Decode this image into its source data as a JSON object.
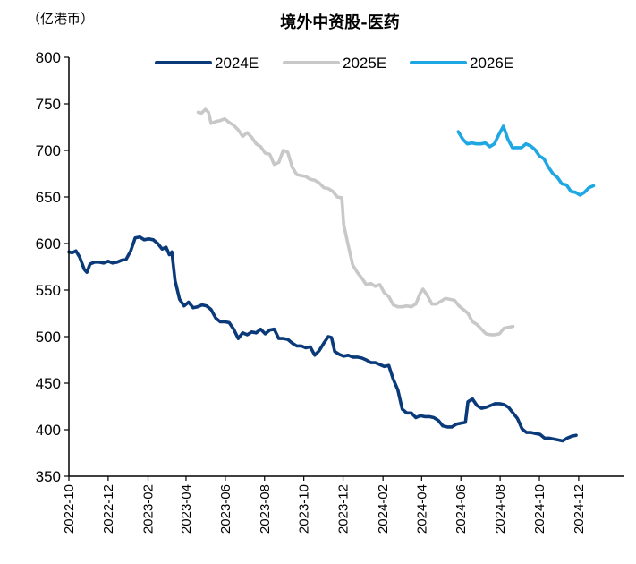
{
  "chart_data": {
    "type": "line",
    "title": "境外中资股-医药",
    "unit_label": "（亿港币）",
    "ylim": [
      350,
      800
    ],
    "yticks": [
      350,
      400,
      450,
      500,
      550,
      600,
      650,
      700,
      750,
      800
    ],
    "xlim": [
      "2022-10-01",
      "2025-02-10"
    ],
    "xticks": [
      "2022-10",
      "2022-12",
      "2023-02",
      "2023-04",
      "2023-06",
      "2023-08",
      "2023-10",
      "2023-12",
      "2024-02",
      "2024-04",
      "2024-06",
      "2024-08",
      "2024-10",
      "2024-12"
    ],
    "grid": false,
    "legend_position": "top",
    "series": [
      {
        "name": "2024E",
        "color": "#0a3a7a",
        "points": [
          [
            "2022-10-01",
            591
          ],
          [
            "2022-10-06",
            590
          ],
          [
            "2022-10-12",
            592
          ],
          [
            "2022-10-18",
            585
          ],
          [
            "2022-10-25",
            572
          ],
          [
            "2022-10-29",
            569
          ],
          [
            "2022-11-03",
            578
          ],
          [
            "2022-11-10",
            580
          ],
          [
            "2022-11-17",
            580
          ],
          [
            "2022-11-24",
            579
          ],
          [
            "2022-12-01",
            581
          ],
          [
            "2022-12-08",
            579
          ],
          [
            "2022-12-15",
            580
          ],
          [
            "2022-12-22",
            582
          ],
          [
            "2022-12-29",
            583
          ],
          [
            "2023-01-05",
            592
          ],
          [
            "2023-01-12",
            606
          ],
          [
            "2023-01-19",
            607
          ],
          [
            "2023-01-26",
            604
          ],
          [
            "2023-02-02",
            605
          ],
          [
            "2023-02-09",
            604
          ],
          [
            "2023-02-16",
            600
          ],
          [
            "2023-02-23",
            594
          ],
          [
            "2023-03-01",
            596
          ],
          [
            "2023-03-06",
            588
          ],
          [
            "2023-03-10",
            591
          ],
          [
            "2023-03-15",
            560
          ],
          [
            "2023-03-22",
            540
          ],
          [
            "2023-03-29",
            533
          ],
          [
            "2023-04-05",
            537
          ],
          [
            "2023-04-12",
            531
          ],
          [
            "2023-04-19",
            532
          ],
          [
            "2023-04-26",
            534
          ],
          [
            "2023-05-03",
            533
          ],
          [
            "2023-05-10",
            529
          ],
          [
            "2023-05-17",
            520
          ],
          [
            "2023-05-24",
            516
          ],
          [
            "2023-05-31",
            516
          ],
          [
            "2023-06-07",
            515
          ],
          [
            "2023-06-14",
            508
          ],
          [
            "2023-06-21",
            498
          ],
          [
            "2023-06-28",
            504
          ],
          [
            "2023-07-05",
            502
          ],
          [
            "2023-07-12",
            505
          ],
          [
            "2023-07-19",
            504
          ],
          [
            "2023-07-26",
            508
          ],
          [
            "2023-08-02",
            503
          ],
          [
            "2023-08-09",
            507
          ],
          [
            "2023-08-16",
            508
          ],
          [
            "2023-08-23",
            498
          ],
          [
            "2023-08-30",
            498
          ],
          [
            "2023-09-06",
            497
          ],
          [
            "2023-09-13",
            493
          ],
          [
            "2023-09-20",
            490
          ],
          [
            "2023-09-27",
            490
          ],
          [
            "2023-10-04",
            488
          ],
          [
            "2023-10-11",
            489
          ],
          [
            "2023-10-18",
            480
          ],
          [
            "2023-10-25",
            485
          ],
          [
            "2023-11-01",
            493
          ],
          [
            "2023-11-08",
            500
          ],
          [
            "2023-11-13",
            499
          ],
          [
            "2023-11-18",
            484
          ],
          [
            "2023-11-25",
            481
          ],
          [
            "2023-12-02",
            479
          ],
          [
            "2023-12-09",
            480
          ],
          [
            "2023-12-16",
            478
          ],
          [
            "2023-12-23",
            478
          ],
          [
            "2023-12-30",
            477
          ],
          [
            "2024-01-06",
            475
          ],
          [
            "2024-01-13",
            472
          ],
          [
            "2024-01-20",
            472
          ],
          [
            "2024-01-27",
            470
          ],
          [
            "2024-02-03",
            468
          ],
          [
            "2024-02-10",
            469
          ],
          [
            "2024-02-17",
            454
          ],
          [
            "2024-02-24",
            443
          ],
          [
            "2024-03-02",
            422
          ],
          [
            "2024-03-09",
            418
          ],
          [
            "2024-03-16",
            418
          ],
          [
            "2024-03-23",
            413
          ],
          [
            "2024-03-30",
            415
          ],
          [
            "2024-04-06",
            414
          ],
          [
            "2024-04-13",
            414
          ],
          [
            "2024-04-20",
            413
          ],
          [
            "2024-04-27",
            410
          ],
          [
            "2024-05-04",
            404
          ],
          [
            "2024-05-11",
            403
          ],
          [
            "2024-05-18",
            403
          ],
          [
            "2024-05-25",
            406
          ],
          [
            "2024-06-01",
            407
          ],
          [
            "2024-06-08",
            408
          ],
          [
            "2024-06-12",
            430
          ],
          [
            "2024-06-19",
            433
          ],
          [
            "2024-06-26",
            426
          ],
          [
            "2024-07-03",
            423
          ],
          [
            "2024-07-10",
            424
          ],
          [
            "2024-07-17",
            426
          ],
          [
            "2024-07-24",
            428
          ],
          [
            "2024-07-31",
            428
          ],
          [
            "2024-08-07",
            427
          ],
          [
            "2024-08-14",
            424
          ],
          [
            "2024-08-21",
            418
          ],
          [
            "2024-08-28",
            412
          ],
          [
            "2024-09-04",
            401
          ],
          [
            "2024-09-11",
            397
          ],
          [
            "2024-09-18",
            397
          ],
          [
            "2024-09-25",
            396
          ],
          [
            "2024-10-02",
            395
          ],
          [
            "2024-10-09",
            391
          ],
          [
            "2024-10-16",
            391
          ],
          [
            "2024-10-23",
            390
          ],
          [
            "2024-10-30",
            389
          ],
          [
            "2024-11-06",
            388
          ],
          [
            "2024-11-13",
            391
          ],
          [
            "2024-11-20",
            393
          ],
          [
            "2024-11-27",
            394
          ]
        ]
      },
      {
        "name": "2025E",
        "color": "#c8c8c8",
        "points": [
          [
            "2023-04-20",
            741
          ],
          [
            "2023-04-25",
            740
          ],
          [
            "2023-05-01",
            744
          ],
          [
            "2023-05-06",
            741
          ],
          [
            "2023-05-10",
            729
          ],
          [
            "2023-05-17",
            731
          ],
          [
            "2023-05-24",
            732
          ],
          [
            "2023-05-31",
            734
          ],
          [
            "2023-06-07",
            730
          ],
          [
            "2023-06-14",
            727
          ],
          [
            "2023-06-21",
            722
          ],
          [
            "2023-06-28",
            715
          ],
          [
            "2023-07-05",
            719
          ],
          [
            "2023-07-12",
            714
          ],
          [
            "2023-07-19",
            707
          ],
          [
            "2023-07-26",
            704
          ],
          [
            "2023-08-02",
            697
          ],
          [
            "2023-08-09",
            696
          ],
          [
            "2023-08-16",
            685
          ],
          [
            "2023-08-23",
            687
          ],
          [
            "2023-08-30",
            700
          ],
          [
            "2023-09-06",
            698
          ],
          [
            "2023-09-13",
            682
          ],
          [
            "2023-09-20",
            674
          ],
          [
            "2023-09-27",
            673
          ],
          [
            "2023-10-04",
            672
          ],
          [
            "2023-10-11",
            669
          ],
          [
            "2023-10-18",
            668
          ],
          [
            "2023-10-25",
            665
          ],
          [
            "2023-11-01",
            660
          ],
          [
            "2023-11-08",
            659
          ],
          [
            "2023-11-15",
            656
          ],
          [
            "2023-11-22",
            650
          ],
          [
            "2023-11-29",
            649
          ],
          [
            "2023-12-02",
            620
          ],
          [
            "2023-12-09",
            598
          ],
          [
            "2023-12-16",
            577
          ],
          [
            "2023-12-23",
            569
          ],
          [
            "2023-12-30",
            563
          ],
          [
            "2024-01-06",
            556
          ],
          [
            "2024-01-13",
            557
          ],
          [
            "2024-01-20",
            554
          ],
          [
            "2024-01-27",
            556
          ],
          [
            "2024-02-03",
            547
          ],
          [
            "2024-02-10",
            543
          ],
          [
            "2024-02-17",
            534
          ],
          [
            "2024-02-24",
            532
          ],
          [
            "2024-03-02",
            532
          ],
          [
            "2024-03-09",
            533
          ],
          [
            "2024-03-16",
            532
          ],
          [
            "2024-03-23",
            535
          ],
          [
            "2024-03-30",
            547
          ],
          [
            "2024-04-03",
            551
          ],
          [
            "2024-04-10",
            544
          ],
          [
            "2024-04-17",
            535
          ],
          [
            "2024-04-24",
            535
          ],
          [
            "2024-05-01",
            538
          ],
          [
            "2024-05-08",
            541
          ],
          [
            "2024-05-15",
            540
          ],
          [
            "2024-05-22",
            539
          ],
          [
            "2024-05-29",
            533
          ],
          [
            "2024-06-05",
            529
          ],
          [
            "2024-06-12",
            525
          ],
          [
            "2024-06-19",
            516
          ],
          [
            "2024-06-26",
            513
          ],
          [
            "2024-07-03",
            508
          ],
          [
            "2024-07-10",
            503
          ],
          [
            "2024-07-17",
            502
          ],
          [
            "2024-07-24",
            502
          ],
          [
            "2024-07-31",
            503
          ],
          [
            "2024-08-07",
            509
          ],
          [
            "2024-08-14",
            510
          ],
          [
            "2024-08-21",
            511
          ]
        ]
      },
      {
        "name": "2026E",
        "color": "#1fa7e3",
        "points": [
          [
            "2024-05-28",
            720
          ],
          [
            "2024-06-04",
            712
          ],
          [
            "2024-06-11",
            707
          ],
          [
            "2024-06-18",
            708
          ],
          [
            "2024-06-25",
            707
          ],
          [
            "2024-07-02",
            707
          ],
          [
            "2024-07-09",
            708
          ],
          [
            "2024-07-16",
            704
          ],
          [
            "2024-07-23",
            707
          ],
          [
            "2024-07-30",
            717
          ],
          [
            "2024-08-06",
            726
          ],
          [
            "2024-08-13",
            712
          ],
          [
            "2024-08-20",
            703
          ],
          [
            "2024-08-27",
            703
          ],
          [
            "2024-09-03",
            703
          ],
          [
            "2024-09-10",
            707
          ],
          [
            "2024-09-17",
            705
          ],
          [
            "2024-09-24",
            701
          ],
          [
            "2024-10-01",
            694
          ],
          [
            "2024-10-08",
            691
          ],
          [
            "2024-10-15",
            682
          ],
          [
            "2024-10-22",
            675
          ],
          [
            "2024-10-29",
            671
          ],
          [
            "2024-11-05",
            664
          ],
          [
            "2024-11-12",
            663
          ],
          [
            "2024-11-19",
            656
          ],
          [
            "2024-11-26",
            655
          ],
          [
            "2024-12-03",
            652
          ],
          [
            "2024-12-10",
            655
          ],
          [
            "2024-12-17",
            660
          ],
          [
            "2024-12-24",
            662
          ]
        ]
      }
    ]
  }
}
